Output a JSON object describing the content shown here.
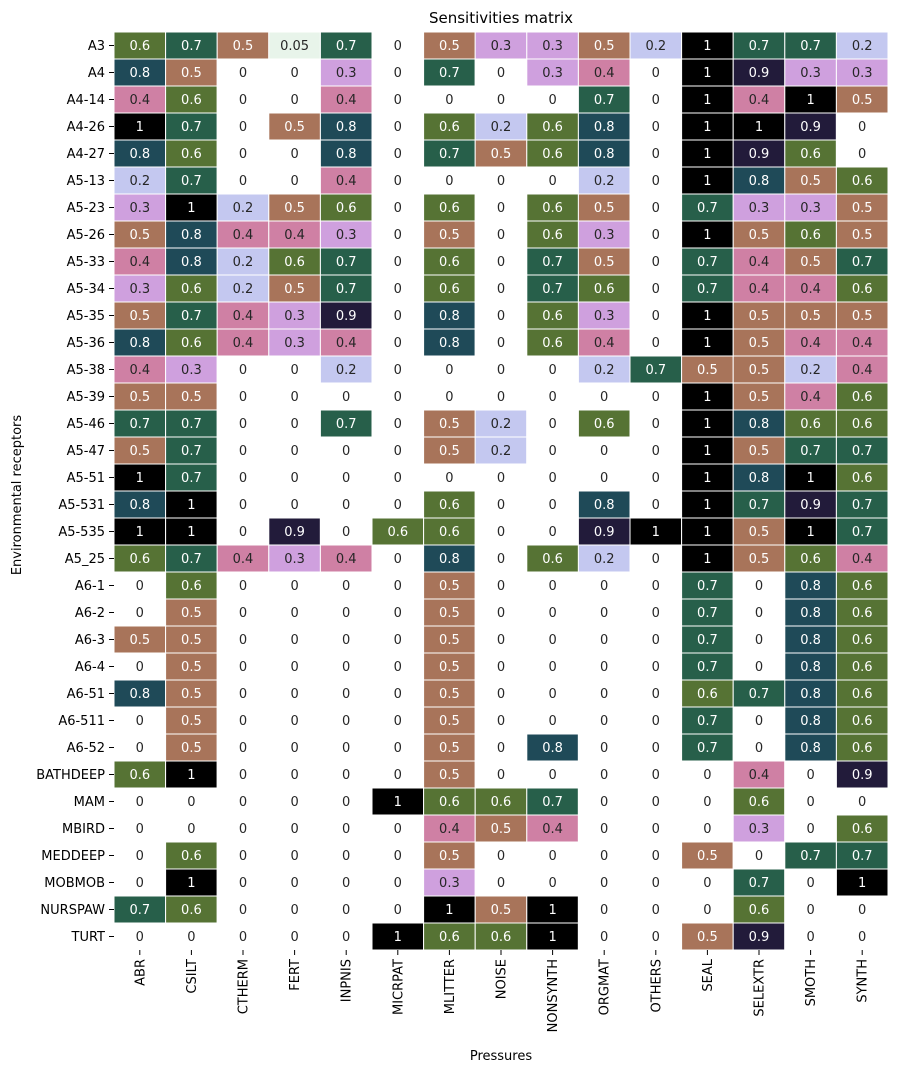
{
  "chart_data": {
    "type": "heatmap",
    "title": "Sensitivities matrix",
    "xlabel": "Pressures",
    "ylabel": "Environmental receptors",
    "columns": [
      "ABR",
      "CSILT",
      "CTHERM",
      "FERT",
      "INPNIS",
      "MICRPAT",
      "MLITTER",
      "NOISE",
      "NONSYNTH",
      "ORGMAT",
      "OTHERS",
      "SEAL",
      "SELEXTR",
      "SMOTH",
      "SYNTH"
    ],
    "rows": [
      "A3",
      "A4",
      "A4-14",
      "A4-26",
      "A4-27",
      "A5-13",
      "A5-23",
      "A5-26",
      "A5-33",
      "A5-34",
      "A5-35",
      "A5-36",
      "A5-38",
      "A5-39",
      "A5-46",
      "A5-47",
      "A5-51",
      "A5-531",
      "A5-535",
      "A5_25",
      "A6-1",
      "A6-2",
      "A6-3",
      "A6-4",
      "A6-51",
      "A6-511",
      "A6-52",
      "BATHDEEP",
      "MAM",
      "MBIRD",
      "MEDDEEP",
      "MOBMOB",
      "NURSPAW",
      "TURT"
    ],
    "values": [
      [
        0.6,
        0.7,
        0.5,
        0.05,
        0.7,
        0,
        0.5,
        0.3,
        0.3,
        0.5,
        0.2,
        1,
        0.7,
        0.7,
        0.2
      ],
      [
        0.8,
        0.5,
        0,
        0,
        0.3,
        0,
        0.7,
        0,
        0.3,
        0.4,
        0,
        1,
        0.9,
        0.3,
        0.3
      ],
      [
        0.4,
        0.6,
        0,
        0,
        0.4,
        0,
        0,
        0,
        0,
        0.7,
        0,
        1,
        0.4,
        1,
        0.5
      ],
      [
        1,
        0.7,
        0,
        0.5,
        0.8,
        0,
        0.6,
        0.2,
        0.6,
        0.8,
        0,
        1,
        1,
        0.9,
        0
      ],
      [
        0.8,
        0.6,
        0,
        0,
        0.8,
        0,
        0.7,
        0.5,
        0.6,
        0.8,
        0,
        1,
        0.9,
        0.6,
        0
      ],
      [
        0.2,
        0.7,
        0,
        0,
        0.4,
        0,
        0,
        0,
        0,
        0.2,
        0,
        1,
        0.8,
        0.5,
        0.6
      ],
      [
        0.3,
        1,
        0.2,
        0.5,
        0.6,
        0,
        0.6,
        0,
        0.6,
        0.5,
        0,
        0.7,
        0.3,
        0.3,
        0.5
      ],
      [
        0.5,
        0.8,
        0.4,
        0.4,
        0.3,
        0,
        0.5,
        0,
        0.6,
        0.3,
        0,
        1,
        0.5,
        0.6,
        0.5
      ],
      [
        0.4,
        0.8,
        0.2,
        0.6,
        0.7,
        0,
        0.6,
        0,
        0.7,
        0.5,
        0,
        0.7,
        0.4,
        0.5,
        0.7
      ],
      [
        0.3,
        0.6,
        0.2,
        0.5,
        0.7,
        0,
        0.6,
        0,
        0.7,
        0.6,
        0,
        0.7,
        0.4,
        0.4,
        0.6
      ],
      [
        0.5,
        0.7,
        0.4,
        0.3,
        0.9,
        0,
        0.8,
        0,
        0.6,
        0.3,
        0,
        1,
        0.5,
        0.5,
        0.5
      ],
      [
        0.8,
        0.6,
        0.4,
        0.3,
        0.4,
        0,
        0.8,
        0,
        0.6,
        0.4,
        0,
        1,
        0.5,
        0.4,
        0.4
      ],
      [
        0.4,
        0.3,
        0,
        0,
        0.2,
        0,
        0,
        0,
        0,
        0.2,
        0.7,
        0.5,
        0.5,
        0.2,
        0.4
      ],
      [
        0.5,
        0.5,
        0,
        0,
        0,
        0,
        0,
        0,
        0,
        0,
        0,
        1,
        0.5,
        0.4,
        0.6
      ],
      [
        0.7,
        0.7,
        0,
        0,
        0.7,
        0,
        0.5,
        0.2,
        0,
        0.6,
        0,
        1,
        0.8,
        0.6,
        0.6
      ],
      [
        0.5,
        0.7,
        0,
        0,
        0,
        0,
        0.5,
        0.2,
        0,
        0,
        0,
        1,
        0.5,
        0.7,
        0.7
      ],
      [
        1,
        0.7,
        0,
        0,
        0,
        0,
        0,
        0,
        0,
        0,
        0,
        1,
        0.8,
        1,
        0.6
      ],
      [
        0.8,
        1,
        0,
        0,
        0,
        0,
        0.6,
        0,
        0,
        0.8,
        0,
        1,
        0.7,
        0.9,
        0.7
      ],
      [
        1,
        1,
        0,
        0.9,
        0,
        0.6,
        0.6,
        0,
        0,
        0.9,
        1,
        1,
        0.5,
        1,
        0.7
      ],
      [
        0.6,
        0.7,
        0.4,
        0.3,
        0.4,
        0,
        0.8,
        0,
        0.6,
        0.2,
        0,
        1,
        0.5,
        0.6,
        0.4
      ],
      [
        0,
        0.6,
        0,
        0,
        0,
        0,
        0.5,
        0,
        0,
        0,
        0,
        0.7,
        0,
        0.8,
        0.6
      ],
      [
        0,
        0.5,
        0,
        0,
        0,
        0,
        0.5,
        0,
        0,
        0,
        0,
        0.7,
        0,
        0.8,
        0.6
      ],
      [
        0.5,
        0.5,
        0,
        0,
        0,
        0,
        0.5,
        0,
        0,
        0,
        0,
        0.7,
        0,
        0.8,
        0.6
      ],
      [
        0,
        0.5,
        0,
        0,
        0,
        0,
        0.5,
        0,
        0,
        0,
        0,
        0.7,
        0,
        0.8,
        0.6
      ],
      [
        0.8,
        0.5,
        0,
        0,
        0,
        0,
        0.5,
        0,
        0,
        0,
        0,
        0.6,
        0.7,
        0.8,
        0.6
      ],
      [
        0,
        0.5,
        0,
        0,
        0,
        0,
        0.5,
        0,
        0,
        0,
        0,
        0.7,
        0,
        0.8,
        0.6
      ],
      [
        0,
        0.5,
        0,
        0,
        0,
        0,
        0.5,
        0,
        0.8,
        0,
        0,
        0.7,
        0,
        0.8,
        0.6
      ],
      [
        0.6,
        1,
        0,
        0,
        0,
        0,
        0.5,
        0,
        0,
        0,
        0,
        0,
        0.4,
        0,
        0.9
      ],
      [
        0,
        0,
        0,
        0,
        0,
        1,
        0.6,
        0.6,
        0.7,
        0,
        0,
        0,
        0.6,
        0,
        0
      ],
      [
        0,
        0,
        0,
        0,
        0,
        0,
        0.4,
        0.5,
        0.4,
        0,
        0,
        0,
        0.3,
        0,
        0.6
      ],
      [
        0,
        0.6,
        0,
        0,
        0,
        0,
        0.5,
        0,
        0,
        0,
        0,
        0.5,
        0,
        0.7,
        0.7
      ],
      [
        0,
        1,
        0,
        0,
        0,
        0,
        0.3,
        0,
        0,
        0,
        0,
        0,
        0.7,
        0,
        1
      ],
      [
        0.7,
        0.6,
        0,
        0,
        0,
        0,
        1,
        0.5,
        1,
        0,
        0,
        0,
        0.6,
        0,
        0
      ],
      [
        0,
        0,
        0,
        0,
        0,
        1,
        0.6,
        0.6,
        1,
        0,
        0,
        0.5,
        0.9,
        0,
        0
      ]
    ],
    "value_range": [
      0,
      1
    ],
    "colormap": "cubehelix_r",
    "zero_cells": "white",
    "color_stops": [
      {
        "v": 0.05,
        "c": "#e8f4ea"
      },
      {
        "v": 0.2,
        "c": "#c4c8f0"
      },
      {
        "v": 0.3,
        "c": "#cfa0de"
      },
      {
        "v": 0.4,
        "c": "#cf80a4"
      },
      {
        "v": 0.5,
        "c": "#a8745a"
      },
      {
        "v": 0.6,
        "c": "#567334"
      },
      {
        "v": 0.7,
        "c": "#275f4a"
      },
      {
        "v": 0.8,
        "c": "#1f4a58"
      },
      {
        "v": 0.9,
        "c": "#221b3a"
      },
      {
        "v": 1.0,
        "c": "#000000"
      }
    ]
  }
}
